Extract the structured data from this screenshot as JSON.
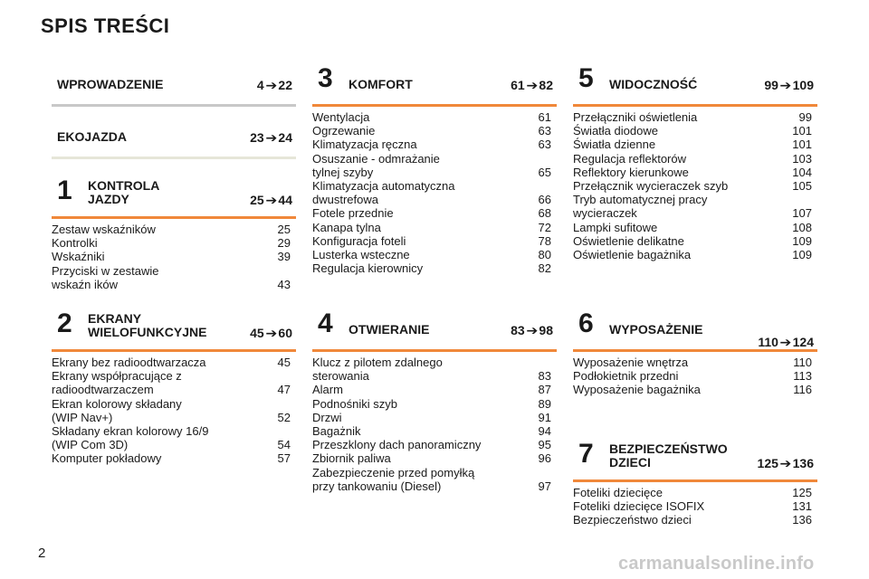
{
  "page": {
    "title": "SPIS TREŚCI",
    "number": "2",
    "watermark": "carmanualsonline.info"
  },
  "colors": {
    "orange": "#f0883a",
    "grey": "#c8c8c8",
    "pale": "#e6e6d8"
  },
  "sections": [
    {
      "id": "wprowadzenie",
      "num": "",
      "title": "WPROWADZENIE",
      "range_start": "4",
      "range_end": "22",
      "rule": "grey",
      "entries": []
    },
    {
      "id": "ekojazda",
      "num": "",
      "title": "EKOJAZDA",
      "range_start": "23",
      "range_end": "24",
      "rule": "pale",
      "entries": []
    },
    {
      "id": "kontrola",
      "num": "1",
      "title": "KONTROLA\nJAZDY",
      "range_start": "25",
      "range_end": "44",
      "rule": "orange",
      "entries": [
        {
          "text": "Zestaw wskaźników",
          "page": "25"
        },
        {
          "text": "Kontrolki",
          "page": "29"
        },
        {
          "text": "Wskaźniki",
          "page": "39"
        },
        {
          "text": "Przyciski w zestawie\n       wskaźn ików",
          "page": "43"
        }
      ]
    },
    {
      "id": "ekrany",
      "num": "2",
      "title": "EKRANY\nWIELOFUNKCYJNE",
      "range_start": "45",
      "range_end": "60",
      "rule": "orange",
      "entries": [
        {
          "text": "Ekrany bez radioodtwarzacza",
          "page": "45"
        },
        {
          "text": "Ekrany współpracujące z\n       radioodtwarzaczem",
          "page": "47"
        },
        {
          "text": "Ekran kolorowy składany\n       (WIP Nav+)",
          "page": "52"
        },
        {
          "text": "Składany ekran kolorowy 16/9\n       (WIP Com 3D)",
          "page": "54"
        },
        {
          "text": "Komputer pokładowy",
          "page": "57"
        }
      ]
    },
    {
      "id": "komfort",
      "num": "3",
      "title": "KOMFORT",
      "range_start": "61",
      "range_end": "82",
      "rule": "orange",
      "entries": [
        {
          "text": "Wentylacja",
          "page": "61"
        },
        {
          "text": "Ogrzewanie",
          "page": "63"
        },
        {
          "text": "Klimatyzacja ręczna",
          "page": "63"
        },
        {
          "text": "Osuszanie - odmrażanie\n       tylnej szyby",
          "page": "65"
        },
        {
          "text": "Klimatyzacja automatyczna\n       dwustrefowa",
          "page": "66"
        },
        {
          "text": "Fotele przednie",
          "page": "68"
        },
        {
          "text": "Kanapa tylna",
          "page": "72"
        },
        {
          "text": "Konfiguracja foteli",
          "page": "78"
        },
        {
          "text": "Lusterka wsteczne",
          "page": "80"
        },
        {
          "text": "Regulacja kierownicy",
          "page": "82"
        }
      ]
    },
    {
      "id": "otwieranie",
      "num": "4",
      "title": "OTWIERANIE",
      "range_start": "83",
      "range_end": "98",
      "rule": "orange",
      "entries": [
        {
          "text": "Klucz z pilotem zdalnego\n       sterowania",
          "page": "83"
        },
        {
          "text": "Alarm",
          "page": "87"
        },
        {
          "text": "Podnośniki szyb",
          "page": "89"
        },
        {
          "text": "Drzwi",
          "page": "91"
        },
        {
          "text": "Bagażnik",
          "page": "94"
        },
        {
          "text": "Przeszklony dach panoramiczny",
          "page": "95"
        },
        {
          "text": "Zbiornik paliwa",
          "page": "96"
        },
        {
          "text": "Zabezpieczenie przed pomyłką\n       przy tankowaniu (Diesel)",
          "page": "97"
        }
      ]
    },
    {
      "id": "widocznosc",
      "num": "5",
      "title": "WIDOCZNOŚĆ",
      "range_start": "99",
      "range_end": "109",
      "rule": "orange",
      "entries": [
        {
          "text": "Przełączniki oświetlenia",
          "page": "99"
        },
        {
          "text": "Światła diodowe",
          "page": "101"
        },
        {
          "text": "Światła dzienne",
          "page": "101"
        },
        {
          "text": "Regulacja reflektorów",
          "page": "103"
        },
        {
          "text": "Reflektory kierunkowe",
          "page": "104"
        },
        {
          "text": "Przełącznik wycieraczek szyb",
          "page": "105"
        },
        {
          "text": "Tryb automatycznej pracy\n       wycieraczek",
          "page": "107"
        },
        {
          "text": "Lampki sufitowe",
          "page": "108"
        },
        {
          "text": "Oświetlenie delikatne",
          "page": "109"
        },
        {
          "text": "Oświetlenie bagażnika",
          "page": "109"
        }
      ]
    },
    {
      "id": "wyposazenie",
      "num": "6",
      "title": "WYPOSAŻENIE",
      "range_start": "110",
      "range_end": "124",
      "rule": "orange",
      "entries": [
        {
          "text": "Wyposażenie wnętrza",
          "page": "110"
        },
        {
          "text": "Podłokietnik przedni",
          "page": "113"
        },
        {
          "text": "Wyposażenie bagażnika",
          "page": "116"
        }
      ]
    },
    {
      "id": "bezpieczenstwo",
      "num": "7",
      "title": "BEZPIECZEŃSTWO\nDZIECI",
      "range_start": "125",
      "range_end": "136",
      "rule": "orange",
      "entries": [
        {
          "text": "Foteliki dziecięce",
          "page": "125"
        },
        {
          "text": "Foteliki dziecięce ISOFIX",
          "page": "131"
        },
        {
          "text": "Bezpieczeństwo dzieci",
          "page": "136"
        }
      ]
    }
  ]
}
